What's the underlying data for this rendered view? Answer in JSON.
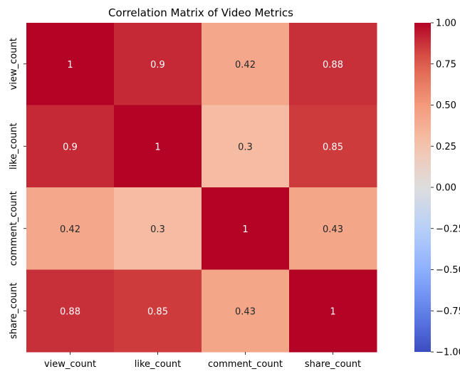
{
  "chart_data": {
    "type": "heatmap",
    "title": "Correlation Matrix of Video Metrics",
    "xlabel": "",
    "ylabel": "",
    "x_categories": [
      "view_count",
      "like_count",
      "comment_count",
      "share_count"
    ],
    "y_categories": [
      "view_count",
      "like_count",
      "comment_count",
      "share_count"
    ],
    "values": [
      [
        1,
        0.9,
        0.42,
        0.88
      ],
      [
        0.9,
        1,
        0.3,
        0.85
      ],
      [
        0.42,
        0.3,
        1,
        0.43
      ],
      [
        0.88,
        0.85,
        0.43,
        1
      ]
    ],
    "annotations": [
      [
        "1",
        "0.9",
        "0.42",
        "0.88"
      ],
      [
        "0.9",
        "1",
        "0.3",
        "0.85"
      ],
      [
        "0.42",
        "0.3",
        "1",
        "0.43"
      ],
      [
        "0.88",
        "0.85",
        "0.43",
        "1"
      ]
    ],
    "colormap": "coolwarm",
    "colorbar": {
      "range": [
        -1,
        1
      ],
      "ticks": [
        -1.0,
        -0.75,
        -0.5,
        -0.25,
        0.0,
        0.25,
        0.5,
        0.75,
        1.0
      ],
      "tick_labels": [
        "−1.00",
        "−0.75",
        "−0.50",
        "−0.25",
        "0.00",
        "0.25",
        "0.50",
        "0.75",
        "1.00"
      ],
      "placement": "right"
    },
    "grid": false
  }
}
